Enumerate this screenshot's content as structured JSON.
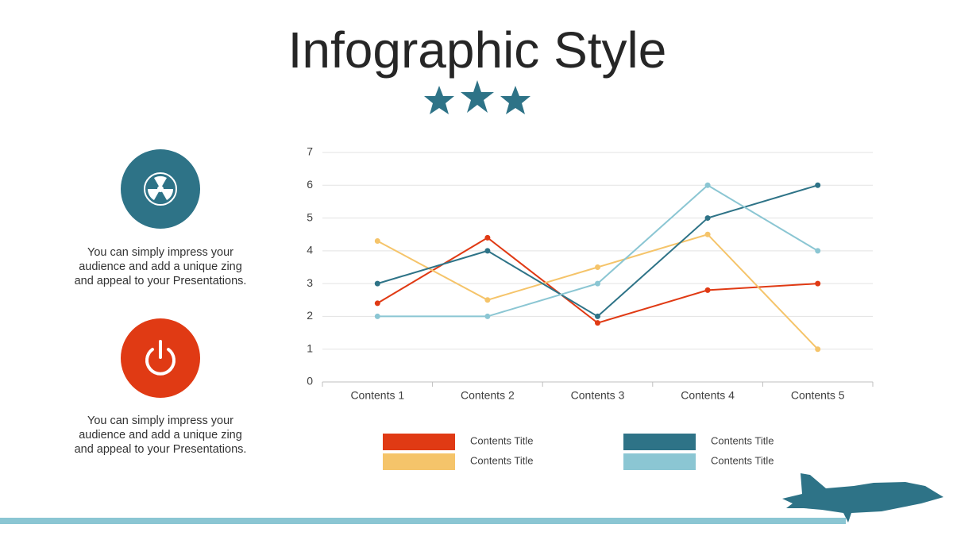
{
  "chart_data": {
    "type": "line",
    "title": "Infographic Style",
    "categories": [
      "Contents 1",
      "Contents 2",
      "Contents 3",
      "Contents 4",
      "Contents 5"
    ],
    "series": [
      {
        "name": "Contents Title",
        "color": "#e03a14",
        "values": [
          2.4,
          4.4,
          1.8,
          2.8,
          3
        ]
      },
      {
        "name": "Contents Title",
        "color": "#f5c46a",
        "values": [
          4.3,
          2.5,
          3.5,
          4.5,
          1
        ]
      },
      {
        "name": "Contents Title",
        "color": "#2e7387",
        "values": [
          3,
          4,
          2,
          5,
          6
        ]
      },
      {
        "name": "Contents Title",
        "color": "#8bc6d3",
        "values": [
          2,
          2,
          3,
          6,
          4
        ]
      }
    ],
    "ylim": [
      0,
      7
    ],
    "yticks": [
      0,
      1,
      2,
      3,
      4,
      5,
      6,
      7
    ],
    "grid": true
  },
  "notes": [
    "You can simply impress your audience and add a unique zing and appeal to your Presentations.",
    "You can simply impress your audience and add a unique zing and appeal to your Presentations."
  ]
}
